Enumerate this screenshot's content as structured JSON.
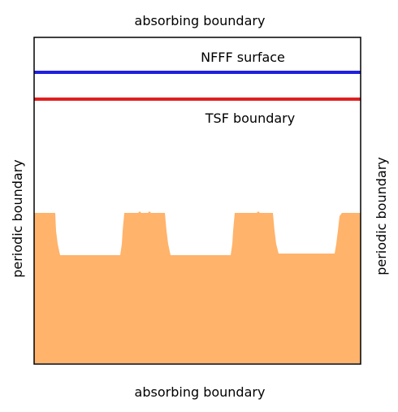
{
  "labels": {
    "top": "absorbing boundary",
    "bottom": "absorbing boundary",
    "left": "periodic boundary",
    "right": "periodic boundary",
    "nfff": "NFFF surface",
    "tsf": "TSF boundary"
  },
  "colors": {
    "nfff_line": "#2020e0",
    "tsf_line": "#e02020",
    "substrate": "#ffb36b",
    "frame": "#000000"
  }
}
